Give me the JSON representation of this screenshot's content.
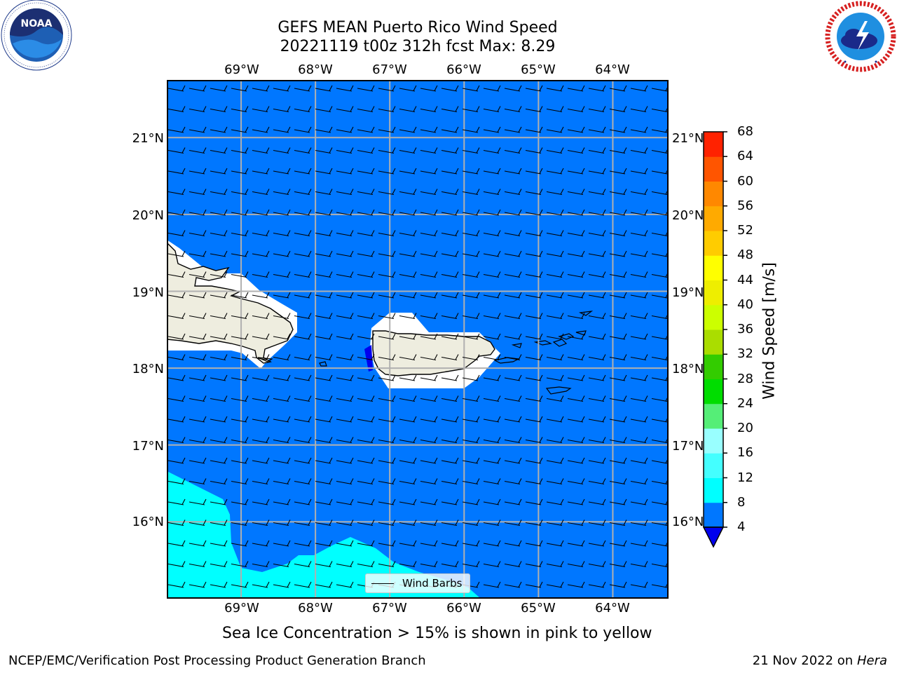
{
  "header": {
    "title_line1": "GEFS MEAN Puerto Rico Wind Speed",
    "title_line2": "20221119 t00z 312h fcst   Max: 8.29"
  },
  "map": {
    "lon_labels": [
      "69°W",
      "68°W",
      "67°W",
      "66°W",
      "65°W",
      "64°W"
    ],
    "lat_labels": [
      "21°N",
      "20°N",
      "19°N",
      "18°N",
      "17°N",
      "16°N"
    ],
    "lon_values": [
      -69,
      -68,
      -67,
      -66,
      -65,
      -64
    ],
    "lat_values": [
      21,
      20,
      19,
      18,
      17,
      16
    ],
    "lon_range": [
      -70.0,
      -63.25
    ],
    "lat_range": [
      15.0,
      21.75
    ],
    "ocean_color": "#0077ff",
    "high_wind_color": "#00ffff",
    "land_color": "#eeeddf",
    "dominant_speed_band_ms": [
      4,
      8
    ],
    "wind_direction": "easterly"
  },
  "legend": {
    "label": "Wind Barbs"
  },
  "colorbar": {
    "label": "Wind Speed [m/s]",
    "ticks": [
      "68",
      "64",
      "60",
      "56",
      "52",
      "48",
      "44",
      "40",
      "36",
      "32",
      "28",
      "24",
      "20",
      "16",
      "12",
      "8",
      "4"
    ],
    "levels": [
      4,
      8,
      12,
      16,
      20,
      24,
      28,
      32,
      36,
      40,
      44,
      48,
      52,
      56,
      60,
      64,
      68
    ],
    "colors": [
      "#0077ff",
      "#00ffff",
      "#44ffff",
      "#99ffff",
      "#55ee77",
      "#00dd00",
      "#33cc00",
      "#aadd00",
      "#ccff00",
      "#eeee00",
      "#ffff00",
      "#ffcc00",
      "#ffaa00",
      "#ff8800",
      "#ff5500",
      "#ff2200",
      "#ff0000"
    ],
    "under_color": "#0000ee"
  },
  "note": "Sea Ice Concentration > 15% is shown in pink to yellow",
  "footer": {
    "left": "NCEP/EMC/Verification Post Processing Product Generation Branch",
    "right_date": "21 Nov 2022 on",
    "right_machine": "Hera"
  }
}
